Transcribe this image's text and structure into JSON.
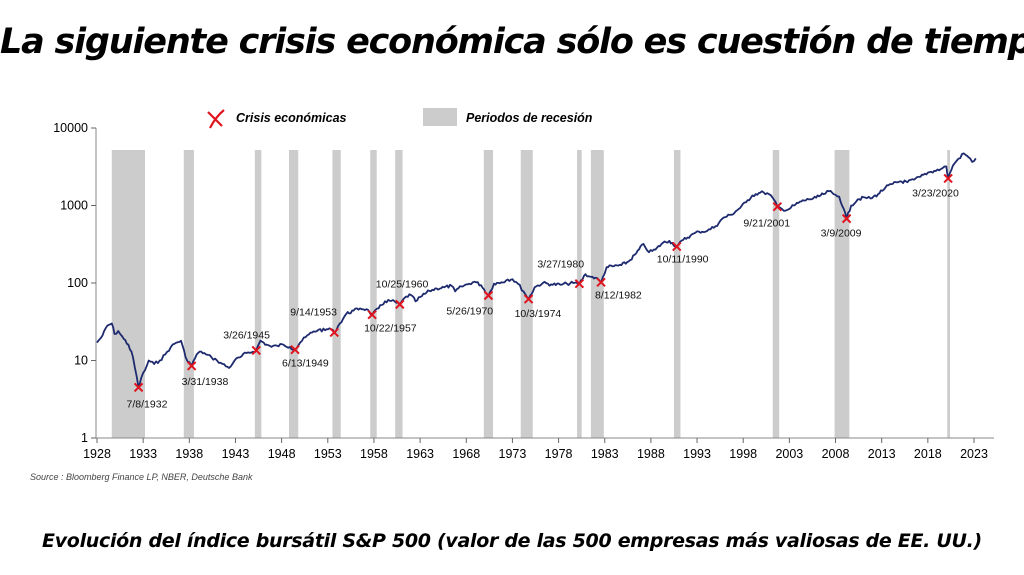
{
  "page": {
    "title": "La siguiente crisis económica sólo es cuestión de tiempo",
    "caption": "Evolución del índice bursátil S&P 500 (valor de las 500 empresas más valiosas de EE. UU.)",
    "source": "Source : Bloomberg Finance LP, NBER, Deutsche Bank"
  },
  "chart_data": {
    "type": "line",
    "title": "",
    "xlabel": "",
    "ylabel": "",
    "yscale": "log",
    "xlim": [
      1928,
      2025
    ],
    "ylim": [
      1,
      10000
    ],
    "grid": false,
    "legend_position": "top",
    "colors": {
      "line": "#1e2a6e",
      "recession": "#cccccc",
      "crisis_marker": "#e0141e"
    },
    "x_ticks": [
      1928,
      1933,
      1938,
      1943,
      1948,
      1953,
      1958,
      1963,
      1968,
      1973,
      1978,
      1983,
      1988,
      1993,
      1998,
      2003,
      2008,
      2013,
      2018,
      2023
    ],
    "x_tick_labels": [
      "1928",
      "1933",
      "1938",
      "1943",
      "1948",
      "1953",
      "1958",
      "1963",
      "1968",
      "1973",
      "1978",
      "1983",
      "1988",
      "1993",
      "1998",
      "2003",
      "2008",
      "2013",
      "2018",
      "2023"
    ],
    "y_ticks": [
      1,
      10,
      100,
      1000,
      10000
    ],
    "y_tick_labels": [
      "1",
      "10",
      "100",
      "1000",
      "10000"
    ],
    "legend": [
      {
        "key": "crisis",
        "label": "Crisis económicas"
      },
      {
        "key": "recession",
        "label": "Periodos de recesión"
      }
    ],
    "recessions": [
      [
        1929.6,
        1933.2
      ],
      [
        1937.4,
        1938.5
      ],
      [
        1945.1,
        1945.8
      ],
      [
        1948.8,
        1949.8
      ],
      [
        1953.5,
        1954.4
      ],
      [
        1957.6,
        1958.3
      ],
      [
        1960.3,
        1961.1
      ],
      [
        1969.9,
        1970.9
      ],
      [
        1973.9,
        1975.2
      ],
      [
        1980.0,
        1980.5
      ],
      [
        1981.5,
        1982.9
      ],
      [
        1990.5,
        1991.2
      ],
      [
        2001.2,
        2001.9
      ],
      [
        2007.9,
        2009.5
      ],
      [
        2020.1,
        2020.4
      ]
    ],
    "crises": [
      {
        "label": "7/8/1932",
        "x": 1932.5,
        "y": 4.5
      },
      {
        "label": "3/31/1938",
        "x": 1938.25,
        "y": 8.5
      },
      {
        "label": "3/26/1945",
        "x": 1945.25,
        "y": 13.5
      },
      {
        "label": "6/13/1949",
        "x": 1949.45,
        "y": 13.8
      },
      {
        "label": "9/14/1953",
        "x": 1953.7,
        "y": 23
      },
      {
        "label": "10/22/1957",
        "x": 1957.8,
        "y": 39
      },
      {
        "label": "10/25/1960",
        "x": 1960.8,
        "y": 53
      },
      {
        "label": "5/26/1970",
        "x": 1970.4,
        "y": 69
      },
      {
        "label": "10/3/1974",
        "x": 1974.75,
        "y": 62
      },
      {
        "label": "3/27/1980",
        "x": 1980.25,
        "y": 98
      },
      {
        "label": "8/12/1982",
        "x": 1982.6,
        "y": 102
      },
      {
        "label": "10/11/1990",
        "x": 1990.8,
        "y": 295
      },
      {
        "label": "9/21/2001",
        "x": 2001.7,
        "y": 965
      },
      {
        "label": "3/9/2009",
        "x": 2009.2,
        "y": 677
      },
      {
        "label": "3/23/2020",
        "x": 2020.2,
        "y": 2237
      }
    ],
    "series": [
      {
        "x": [
          1928.0,
          1928.6,
          1929.1,
          1929.6,
          1929.9,
          1930.3,
          1930.9,
          1931.4,
          1931.9,
          1932.5,
          1932.8,
          1933.2,
          1933.6,
          1934.2,
          1934.8,
          1935.4,
          1936.0,
          1936.6,
          1937.1,
          1937.6,
          1938.0,
          1938.25,
          1938.8,
          1939.3,
          1939.8,
          1940.4,
          1941.0,
          1941.6,
          1942.3,
          1942.9,
          1943.5,
          1944.2,
          1944.9,
          1945.25,
          1945.7,
          1946.4,
          1946.9,
          1947.5,
          1948.2,
          1948.9,
          1949.45,
          1950.0,
          1950.6,
          1951.3,
          1952.0,
          1952.7,
          1953.2,
          1953.7,
          1954.3,
          1955.0,
          1955.8,
          1956.5,
          1957.2,
          1957.8,
          1958.5,
          1959.2,
          1959.9,
          1960.8,
          1961.5,
          1962.0,
          1962.5,
          1963.2,
          1964.0,
          1964.8,
          1965.6,
          1966.4,
          1966.8,
          1967.5,
          1968.3,
          1968.9,
          1969.6,
          1970.4,
          1971.0,
          1971.8,
          1972.5,
          1973.0,
          1973.6,
          1974.2,
          1974.75,
          1975.4,
          1976.3,
          1977.2,
          1978.2,
          1978.9,
          1979.6,
          1980.25,
          1980.9,
          1981.5,
          1982.0,
          1982.6,
          1983.2,
          1984.0,
          1984.8,
          1985.6,
          1986.4,
          1987.2,
          1987.8,
          1988.5,
          1989.3,
          1990.0,
          1990.8,
          1991.5,
          1992.3,
          1993.2,
          1994.1,
          1995.0,
          1995.9,
          1996.7,
          1997.5,
          1998.3,
          1999.0,
          1999.7,
          2000.2,
          2000.8,
          2001.2,
          2001.7,
          2002.2,
          2002.8,
          2003.5,
          2004.3,
          2005.1,
          2005.9,
          2006.7,
          2007.3,
          2007.8,
          2008.4,
          2008.9,
          2009.2,
          2009.7,
          2010.4,
          2011.2,
          2011.8,
          2012.6,
          2013.4,
          2014.2,
          2015.0,
          2015.8,
          2016.5,
          2017.2,
          2018.0,
          2018.7,
          2019.4,
          2020.0,
          2020.2,
          2020.7,
          2021.3,
          2021.9,
          2022.4,
          2022.8,
          2023.2
        ],
        "y": [
          17,
          21,
          28,
          30,
          22,
          24,
          19,
          16,
          11,
          4.5,
          6,
          7.5,
          10,
          9,
          10,
          12,
          15,
          17,
          18,
          11,
          9.5,
          8.5,
          12,
          13,
          12,
          11,
          10,
          9,
          8,
          10,
          11,
          12.5,
          13,
          13.5,
          18,
          16,
          15,
          15.5,
          16,
          15,
          13.8,
          17,
          20,
          23,
          25,
          24.5,
          26,
          23,
          30,
          40,
          44,
          47,
          46,
          39,
          47,
          58,
          59,
          53,
          67,
          70,
          58,
          68,
          79,
          85,
          88,
          92,
          78,
          90,
          98,
          104,
          94,
          69,
          98,
          102,
          111,
          112,
          98,
          78,
          62,
          88,
          100,
          96,
          95,
          98,
          100,
          98,
          130,
          120,
          117,
          102,
          160,
          165,
          170,
          190,
          240,
          320,
          250,
          270,
          330,
          350,
          295,
          360,
          410,
          460,
          470,
          540,
          700,
          760,
          900,
          1100,
          1350,
          1450,
          1480,
          1400,
          1250,
          965,
          900,
          880,
          1000,
          1130,
          1200,
          1260,
          1400,
          1530,
          1400,
          1300,
          900,
          677,
          1000,
          1200,
          1270,
          1230,
          1400,
          1700,
          1900,
          2050,
          2000,
          2150,
          2350,
          2650,
          2800,
          2950,
          3200,
          2237,
          3250,
          4000,
          4700,
          4200,
          3650,
          4050
        ]
      }
    ]
  }
}
